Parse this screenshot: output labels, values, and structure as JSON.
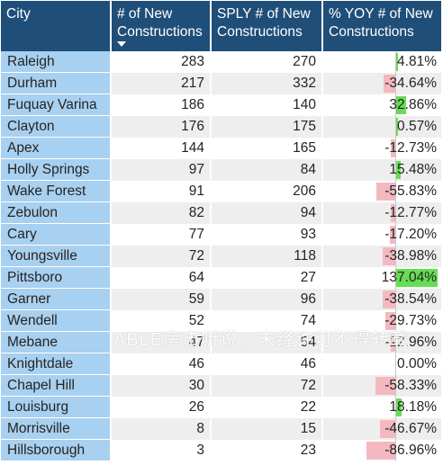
{
  "table": {
    "headers": [
      "City",
      "# of New Constructions",
      "SPLY # of New Constructions",
      "% YOY # of New Constructions"
    ],
    "sorted_column": "# of New Constructions",
    "sort_direction": "descending",
    "colors": {
      "header_bg": "#1f4e79",
      "city_bg": "#a8d0f0",
      "positive_bar": "#66dd55",
      "negative_bar": "#f4b8c0"
    },
    "rows": [
      {
        "city": "Raleigh",
        "new": "283",
        "sply": "270",
        "yoy": "4.81%",
        "yoy_value": 4.81
      },
      {
        "city": "Durham",
        "new": "217",
        "sply": "332",
        "yoy": "-34.64%",
        "yoy_value": -34.64
      },
      {
        "city": "Fuquay Varina",
        "new": "186",
        "sply": "140",
        "yoy": "32.86%",
        "yoy_value": 32.86
      },
      {
        "city": "Clayton",
        "new": "176",
        "sply": "175",
        "yoy": "0.57%",
        "yoy_value": 0.57
      },
      {
        "city": "Apex",
        "new": "144",
        "sply": "165",
        "yoy": "-12.73%",
        "yoy_value": -12.73
      },
      {
        "city": "Holly Springs",
        "new": "97",
        "sply": "84",
        "yoy": "15.48%",
        "yoy_value": 15.48
      },
      {
        "city": "Wake Forest",
        "new": "91",
        "sply": "206",
        "yoy": "-55.83%",
        "yoy_value": -55.83
      },
      {
        "city": "Zebulon",
        "new": "82",
        "sply": "94",
        "yoy": "-12.77%",
        "yoy_value": -12.77
      },
      {
        "city": "Cary",
        "new": "77",
        "sply": "93",
        "yoy": "-17.20%",
        "yoy_value": -17.2
      },
      {
        "city": "Youngsville",
        "new": "72",
        "sply": "118",
        "yoy": "-38.98%",
        "yoy_value": -38.98
      },
      {
        "city": "Pittsboro",
        "new": "64",
        "sply": "27",
        "yoy": "137.04%",
        "yoy_value": 137.04
      },
      {
        "city": "Garner",
        "new": "59",
        "sply": "96",
        "yoy": "-38.54%",
        "yoy_value": -38.54
      },
      {
        "city": "Wendell",
        "new": "52",
        "sply": "74",
        "yoy": "-29.73%",
        "yoy_value": -29.73
      },
      {
        "city": "Mebane",
        "new": "47",
        "sply": "54",
        "yoy": "-12.96%",
        "yoy_value": -12.96
      },
      {
        "city": "Knightdale",
        "new": "46",
        "sply": "46",
        "yoy": "0.00%",
        "yoy_value": 0
      },
      {
        "city": "Chapel Hill",
        "new": "30",
        "sply": "72",
        "yoy": "-58.33%",
        "yoy_value": -58.33
      },
      {
        "city": "Louisburg",
        "new": "26",
        "sply": "22",
        "yoy": "18.18%",
        "yoy_value": 18.18
      },
      {
        "city": "Morrisville",
        "new": "8",
        "sply": "15",
        "yoy": "-46.67%",
        "yoy_value": -46.67
      },
      {
        "city": "Hillsborough",
        "new": "3",
        "sply": "23",
        "yoy": "-86.96%",
        "yoy_value": -86.96
      }
    ]
  },
  "watermark": "ABLE房市听说，未经许可不得转载"
}
